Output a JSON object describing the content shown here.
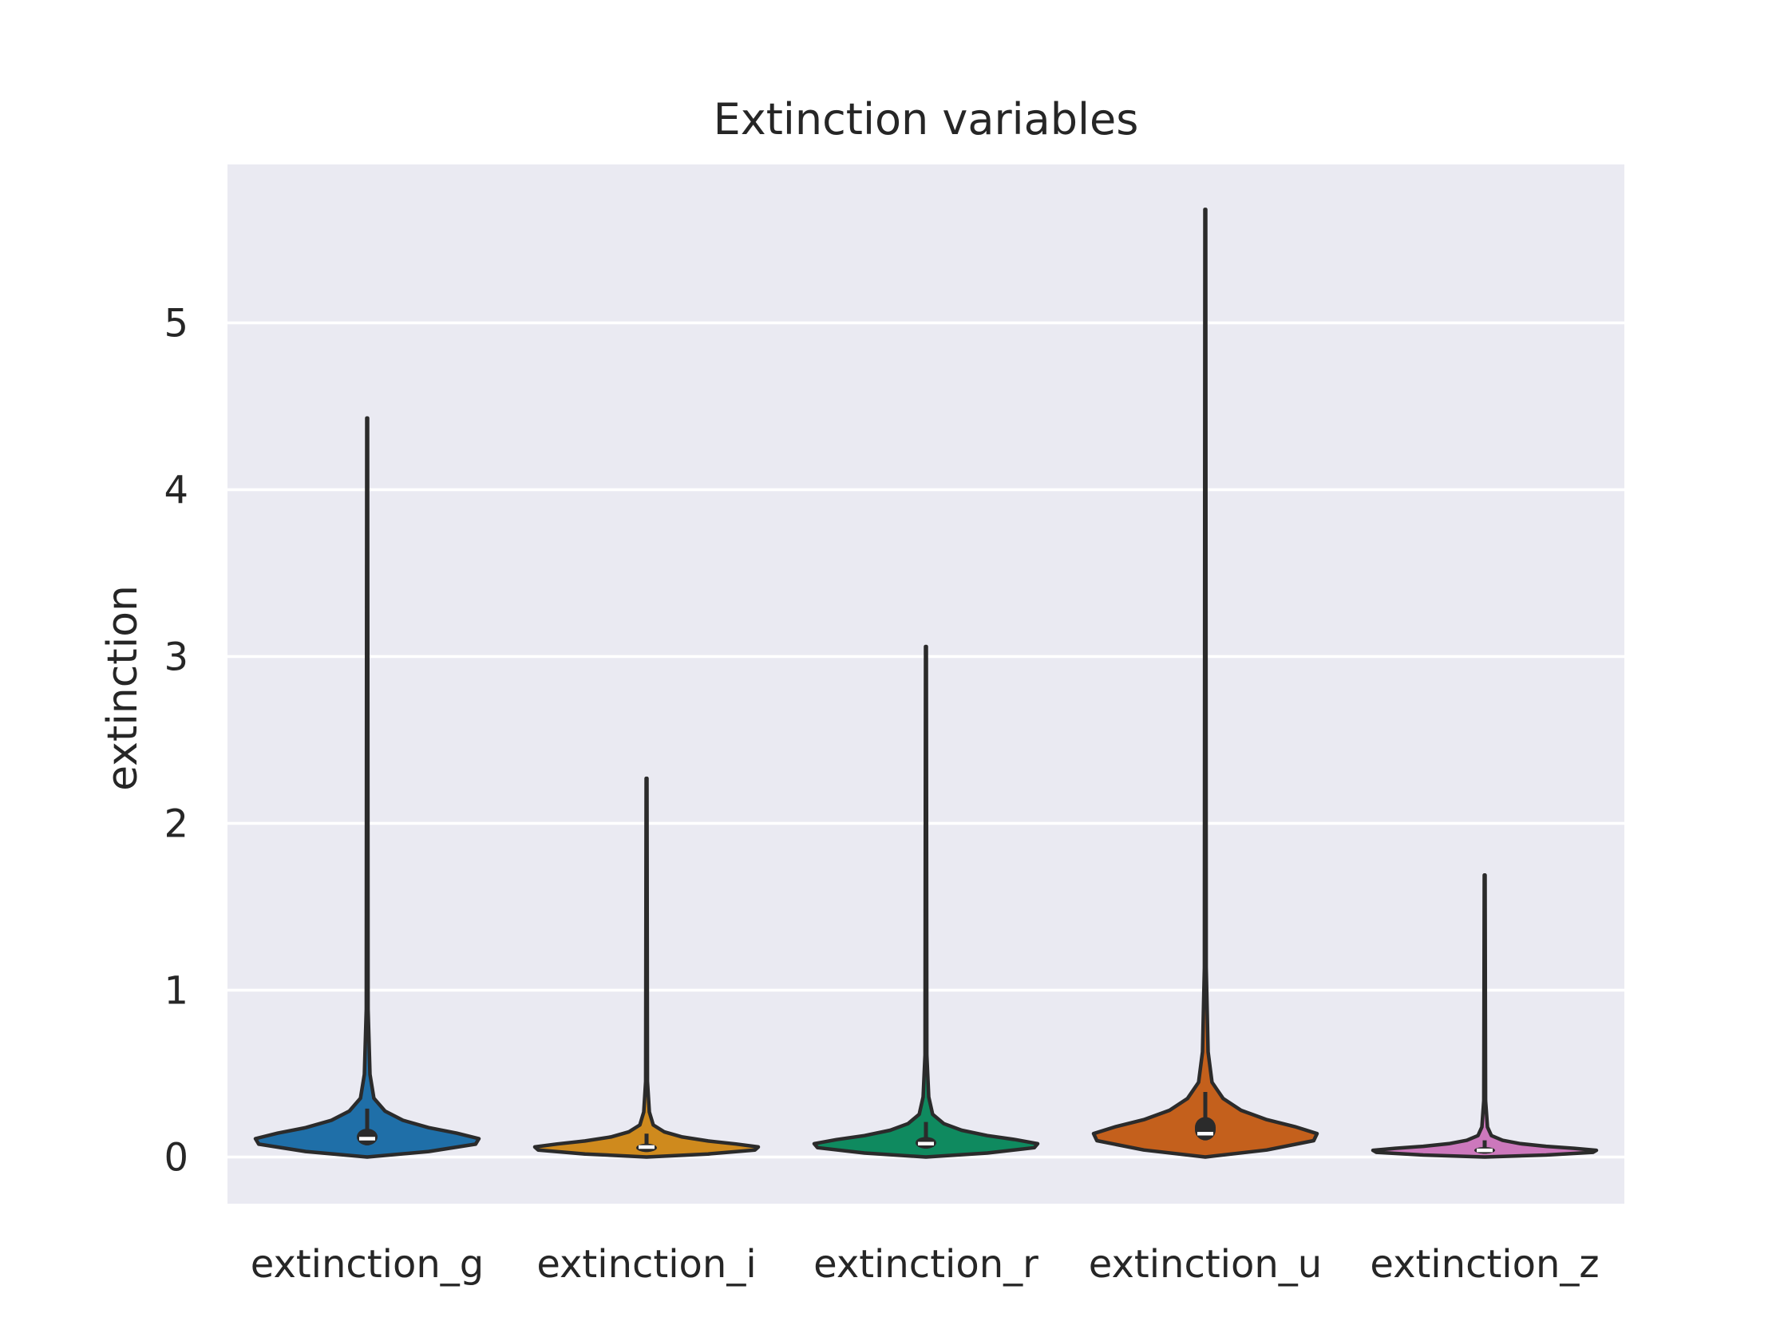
{
  "chart_data": {
    "type": "violin",
    "title": "Extinction variables",
    "xlabel": "",
    "ylabel": "extinction",
    "ylim": [
      -0.28,
      5.95
    ],
    "yticks": [
      0,
      1,
      2,
      3,
      4,
      5
    ],
    "grid": true,
    "legend": "none",
    "colors": [
      "#1f6fa8",
      "#cf8a1d",
      "#0f8a5f",
      "#c4601c",
      "#cc78bc"
    ],
    "categories": [
      "extinction_g",
      "extinction_i",
      "extinction_r",
      "extinction_u",
      "extinction_z"
    ],
    "series": [
      {
        "category": "extinction_g",
        "min": 0.0,
        "q1": 0.07,
        "median": 0.11,
        "q3": 0.17,
        "max": 4.43,
        "whisker_high": 0.29
      },
      {
        "category": "extinction_i",
        "min": 0.0,
        "q1": 0.03,
        "median": 0.06,
        "q3": 0.08,
        "max": 2.27,
        "whisker_high": 0.14
      },
      {
        "category": "extinction_r",
        "min": 0.0,
        "q1": 0.05,
        "median": 0.08,
        "q3": 0.12,
        "max": 3.06,
        "whisker_high": 0.21
      },
      {
        "category": "extinction_u",
        "min": 0.0,
        "q1": 0.1,
        "median": 0.14,
        "q3": 0.24,
        "max": 5.68,
        "whisker_high": 0.39
      },
      {
        "category": "extinction_z",
        "min": 0.0,
        "q1": 0.02,
        "median": 0.04,
        "q3": 0.06,
        "max": 1.69,
        "whisker_high": 0.1
      }
    ]
  }
}
